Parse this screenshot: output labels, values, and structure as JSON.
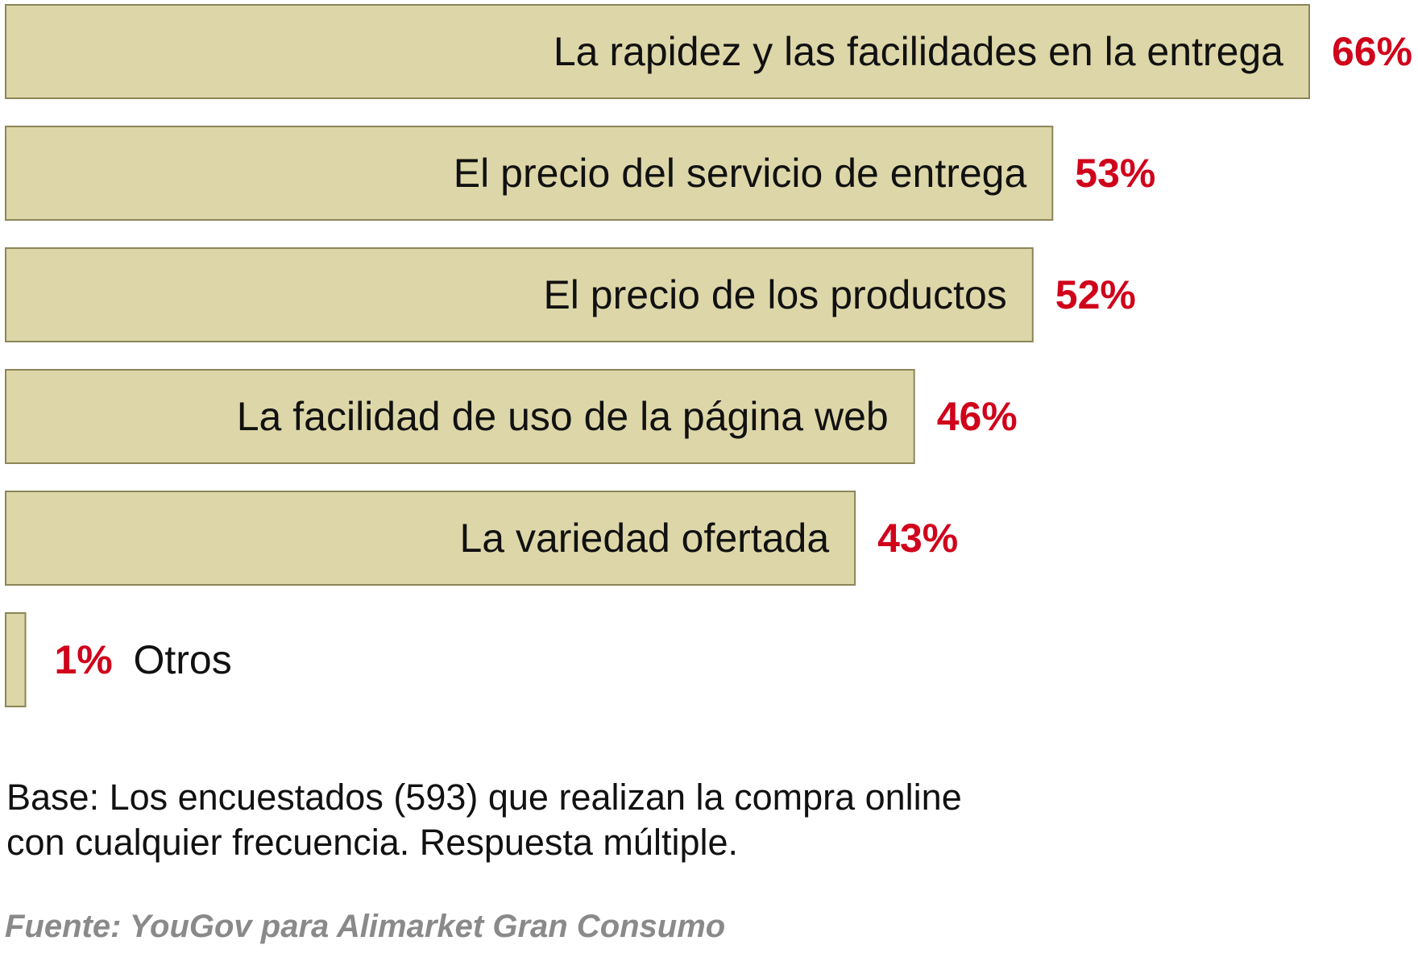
{
  "chart_data": {
    "type": "bar",
    "orientation": "horizontal",
    "categories": [
      "La rapidez y las facilidades en la entrega",
      "El precio del servicio de entrega",
      "El precio de los productos",
      "La facilidad de uso de la página web",
      "La variedad ofertada",
      "Otros"
    ],
    "values": [
      66,
      53,
      52,
      46,
      43,
      1
    ],
    "value_labels": [
      "66%",
      "53%",
      "52%",
      "46%",
      "43%",
      "1%"
    ],
    "xlim": [
      0,
      66
    ],
    "grid": false,
    "legend": "none",
    "colors": {
      "bar_fill": "#ddd6a8",
      "bar_border": "#8c8558",
      "value_text": "#d0021b",
      "label_text": "#111111"
    }
  },
  "note": {
    "line1": "Base: Los encuestados (593) que realizan la compra online",
    "line2": "con cualquier frecuencia. Respuesta múltiple."
  },
  "source": "Fuente: YouGov para Alimarket Gran Consumo"
}
